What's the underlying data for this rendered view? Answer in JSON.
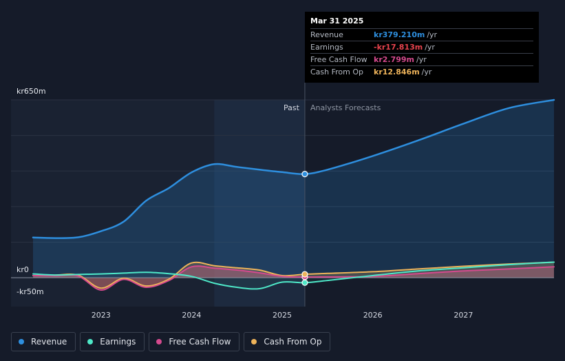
{
  "chart_data": {
    "type": "line",
    "currency": "kr",
    "y_unit": "m",
    "ylim": [
      -50,
      650
    ],
    "y_labels": [
      {
        "value": 650,
        "text": "kr650m"
      },
      {
        "value": 0,
        "text": "kr0"
      },
      {
        "value": -50,
        "text": "-kr50m"
      }
    ],
    "x_range": [
      2022.25,
      2028.0
    ],
    "x_ticks": [
      {
        "value": 2023,
        "label": "2023"
      },
      {
        "value": 2024,
        "label": "2024"
      },
      {
        "value": 2025,
        "label": "2025"
      },
      {
        "value": 2026,
        "label": "2026"
      },
      {
        "value": 2027,
        "label": "2027"
      }
    ],
    "divider_x": 2025.25,
    "past_shade_start": 2024.25,
    "past_label": "Past",
    "forecast_label": "Analysts Forecasts",
    "series": [
      {
        "name": "Revenue",
        "color": "#2e8fdf",
        "points": [
          [
            2022.25,
            147
          ],
          [
            2022.5,
            145
          ],
          [
            2022.75,
            148
          ],
          [
            2023.0,
            170
          ],
          [
            2023.25,
            205
          ],
          [
            2023.5,
            282
          ],
          [
            2023.75,
            328
          ],
          [
            2024.0,
            385
          ],
          [
            2024.25,
            415
          ],
          [
            2024.5,
            405
          ],
          [
            2024.75,
            395
          ],
          [
            2025.0,
            386
          ],
          [
            2025.25,
            379
          ],
          [
            2025.5,
            395
          ],
          [
            2026.0,
            445
          ],
          [
            2026.5,
            502
          ],
          [
            2027.0,
            563
          ],
          [
            2027.5,
            620
          ],
          [
            2028.0,
            650
          ]
        ]
      },
      {
        "name": "Earnings",
        "color": "#4ee8c8",
        "points": [
          [
            2022.25,
            14
          ],
          [
            2022.5,
            10
          ],
          [
            2022.75,
            12
          ],
          [
            2023.0,
            14
          ],
          [
            2023.25,
            17
          ],
          [
            2023.5,
            20
          ],
          [
            2023.75,
            15
          ],
          [
            2024.0,
            5
          ],
          [
            2024.25,
            -20
          ],
          [
            2024.5,
            -35
          ],
          [
            2024.75,
            -40
          ],
          [
            2025.0,
            -16
          ],
          [
            2025.25,
            -18
          ],
          [
            2025.5,
            -10
          ],
          [
            2026.0,
            8
          ],
          [
            2026.5,
            25
          ],
          [
            2027.0,
            36
          ],
          [
            2027.5,
            48
          ],
          [
            2028.0,
            57
          ]
        ]
      },
      {
        "name": "Free Cash Flow",
        "color": "#d54a8e",
        "points": [
          [
            2022.25,
            8
          ],
          [
            2022.5,
            7
          ],
          [
            2022.75,
            6
          ],
          [
            2023.0,
            -45
          ],
          [
            2023.25,
            -6
          ],
          [
            2023.5,
            -35
          ],
          [
            2023.75,
            -10
          ],
          [
            2024.0,
            40
          ],
          [
            2024.25,
            35
          ],
          [
            2024.5,
            28
          ],
          [
            2024.75,
            18
          ],
          [
            2025.0,
            5
          ],
          [
            2025.25,
            2.8
          ],
          [
            2025.5,
            3
          ],
          [
            2026.0,
            5
          ],
          [
            2026.5,
            15
          ],
          [
            2027.0,
            25
          ],
          [
            2027.5,
            32
          ],
          [
            2028.0,
            40
          ]
        ]
      },
      {
        "name": "Cash From Op",
        "color": "#eeb35a",
        "points": [
          [
            2022.25,
            8
          ],
          [
            2022.5,
            10
          ],
          [
            2022.75,
            9
          ],
          [
            2023.0,
            -38
          ],
          [
            2023.25,
            -2
          ],
          [
            2023.5,
            -30
          ],
          [
            2023.75,
            -5
          ],
          [
            2024.0,
            54
          ],
          [
            2024.25,
            44
          ],
          [
            2024.5,
            36
          ],
          [
            2024.75,
            28
          ],
          [
            2025.0,
            8
          ],
          [
            2025.25,
            12.8
          ],
          [
            2025.5,
            16
          ],
          [
            2026.0,
            22
          ],
          [
            2026.5,
            32
          ],
          [
            2027.0,
            42
          ],
          [
            2027.5,
            50
          ],
          [
            2028.0,
            57
          ]
        ]
      }
    ]
  },
  "tooltip": {
    "date": "Mar 31 2025",
    "rows": [
      {
        "label": "Revenue",
        "value": "kr379.210m",
        "unit": "/yr",
        "color": "#2e8fdf"
      },
      {
        "label": "Earnings",
        "value": "-kr17.813m",
        "unit": "/yr",
        "color": "#e8434d"
      },
      {
        "label": "Free Cash Flow",
        "value": "kr2.799m",
        "unit": "/yr",
        "color": "#d54a8e"
      },
      {
        "label": "Cash From Op",
        "value": "kr12.846m",
        "unit": "/yr",
        "color": "#eeb35a"
      }
    ]
  },
  "legend": [
    {
      "label": "Revenue",
      "color": "#2e8fdf"
    },
    {
      "label": "Earnings",
      "color": "#4ee8c8"
    },
    {
      "label": "Free Cash Flow",
      "color": "#d54a8e"
    },
    {
      "label": "Cash From Op",
      "color": "#eeb35a"
    }
  ]
}
